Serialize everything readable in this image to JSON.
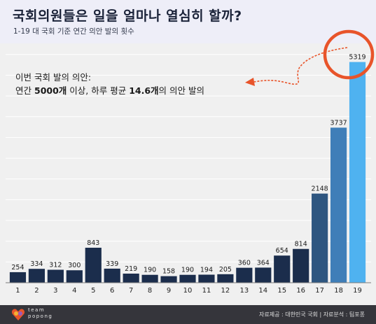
{
  "header": {
    "title": "국회의원들은 일을 얼마나 열심히 할까?",
    "subtitle": "1-19 대 국회 기준 연간 의안 발의 횟수"
  },
  "annotation": {
    "line1": "이번 국회 발의 의안:",
    "line2_prefix": "연간",
    "line2_value1": "5000개",
    "line2_mid": "이상, 하루 평균",
    "line2_value2": "14.6개",
    "line2_suffix": "의 의안 발의"
  },
  "footer": {
    "logo_line1": "team",
    "logo_line2": "popong",
    "credits": "자료제공 : 대한민국 국회  |  자료분석 : 팀포퐁"
  },
  "colors": {
    "dark_navy": "#1b2d4c",
    "mid_blue_1": "#2e5680",
    "mid_blue_2": "#3f7eb8",
    "bright_blue": "#4fb2f0",
    "highlight_circle": "#e8542a",
    "arrow": "#e8542a"
  },
  "chart_data": {
    "type": "bar",
    "categories": [
      "1",
      "2",
      "3",
      "4",
      "5",
      "6",
      "7",
      "8",
      "9",
      "10",
      "11",
      "12",
      "13",
      "14",
      "15",
      "16",
      "17",
      "18",
      "19"
    ],
    "values": [
      254,
      334,
      312,
      300,
      843,
      339,
      219,
      190,
      158,
      190,
      194,
      205,
      360,
      364,
      654,
      814,
      2148,
      3737,
      5319
    ],
    "data_labels": [
      "254",
      "334",
      "312",
      "300",
      "843",
      "339",
      "219",
      "190",
      "158",
      "190",
      "194",
      "205",
      "360",
      "364",
      "654",
      "814",
      "2148",
      "3737",
      "5319"
    ],
    "bar_colors": [
      "#1b2d4c",
      "#1b2d4c",
      "#1b2d4c",
      "#1b2d4c",
      "#1b2d4c",
      "#1b2d4c",
      "#1b2d4c",
      "#1b2d4c",
      "#1b2d4c",
      "#1b2d4c",
      "#1b2d4c",
      "#1b2d4c",
      "#1b2d4c",
      "#1b2d4c",
      "#1b2d4c",
      "#1b2d4c",
      "#2e5680",
      "#3f7eb8",
      "#4fb2f0"
    ],
    "title": "국회의원들은 일을 얼마나 열심히 할까?",
    "subtitle": "1-19 대 국회 기준 연간 의안 발의 횟수",
    "xlabel": "",
    "ylabel": "",
    "ylim": [
      0,
      5700
    ],
    "grid": true,
    "highlight_category": "19"
  }
}
